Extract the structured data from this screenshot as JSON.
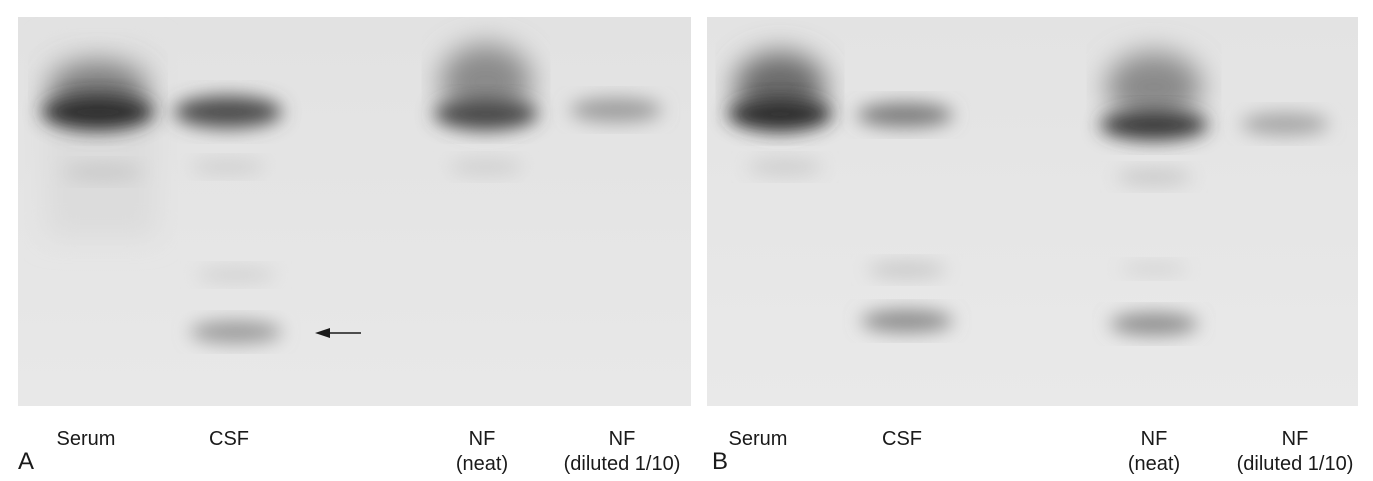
{
  "panels": [
    {
      "letter": "A",
      "lanes": [
        {
          "label": "Serum",
          "label2": ""
        },
        {
          "label": "CSF",
          "label2": ""
        },
        {
          "label": "NF",
          "label2": "(neat)"
        },
        {
          "label": "NF",
          "label2": "(diluted 1/10)"
        }
      ]
    },
    {
      "letter": "B",
      "lanes": [
        {
          "label": "Serum",
          "label2": ""
        },
        {
          "label": "CSF",
          "label2": ""
        },
        {
          "label": "NF",
          "label2": "(neat)"
        },
        {
          "label": "NF",
          "label2": "(diluted 1/10)"
        }
      ]
    }
  ],
  "colors": {
    "gel_background": "#e6e6e6",
    "band": "#2a2a2a"
  }
}
